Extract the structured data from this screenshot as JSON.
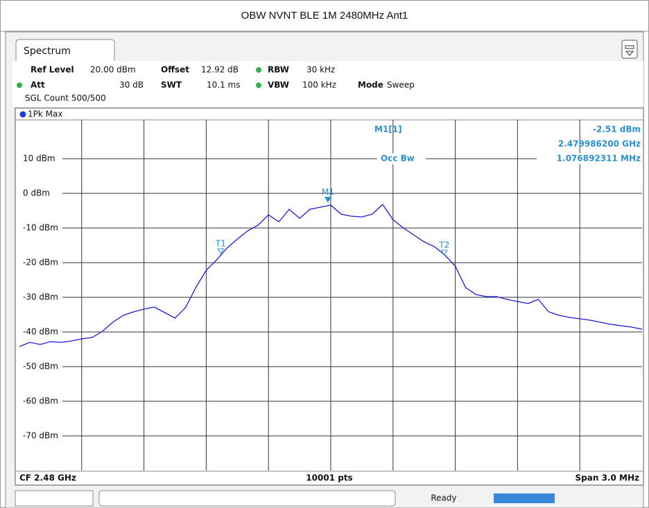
{
  "chart_data": {
    "type": "line",
    "title": "OBW NVNT BLE 1M 2480MHz Ant1",
    "trace_label": "1Pk Max",
    "xlim": [
      2.4785,
      2.4815
    ],
    "ylim": [
      -80,
      20
    ],
    "yticks": [
      {
        "value": 10,
        "label": "10 dBm"
      },
      {
        "value": 0,
        "label": "0 dBm"
      },
      {
        "value": -10,
        "label": "-10 dBm"
      },
      {
        "value": -20,
        "label": "-20 dBm"
      },
      {
        "value": -30,
        "label": "-30 dBm"
      },
      {
        "value": -40,
        "label": "-40 dBm"
      },
      {
        "value": -50,
        "label": "-50 dBm"
      },
      {
        "value": -60,
        "label": "-60 dBm"
      },
      {
        "value": -70,
        "label": "-70 dBm"
      }
    ],
    "grid": true,
    "x": [
      2.4785,
      2.47855,
      2.4786,
      2.47865,
      2.4787,
      2.47875,
      2.4788,
      2.47885,
      2.4789,
      2.47895,
      2.479,
      2.47905,
      2.4791,
      2.47915,
      2.4792,
      2.47925,
      2.4793,
      2.47935,
      2.4794,
      2.47945,
      2.4795,
      2.47955,
      2.4796,
      2.47965,
      2.4797,
      2.47975,
      2.4798,
      2.47985,
      2.4799,
      2.47995,
      2.48,
      2.48005,
      2.4801,
      2.48015,
      2.4802,
      2.48025,
      2.4803,
      2.48035,
      2.4804,
      2.48045,
      2.4805,
      2.48055,
      2.4806,
      2.48065,
      2.4807,
      2.48075,
      2.4808,
      2.48085,
      2.4809,
      2.48095,
      2.481,
      2.48105,
      2.4811,
      2.48115,
      2.4812,
      2.48125,
      2.4813,
      2.48135,
      2.4814,
      2.48145,
      2.4815
    ],
    "series": [
      {
        "name": "1Pk Max",
        "color": "#1a1adc",
        "values": [
          -44.2,
          -43,
          -43.6,
          -42.8,
          -43,
          -42.6,
          -42,
          -41.6,
          -39.8,
          -37.2,
          -35.2,
          -34.2,
          -33.4,
          -32.8,
          -34.4,
          -36,
          -33,
          -27.2,
          -22.2,
          -19.2,
          -15.8,
          -13.2,
          -10.8,
          -9.2,
          -6.2,
          -8.2,
          -4.6,
          -7.2,
          -4.6,
          -4,
          -3.4,
          -6,
          -6.6,
          -6.8,
          -6,
          -3.2,
          -7.6,
          -10,
          -12,
          -14,
          -15.4,
          -17.8,
          -21,
          -27.2,
          -29.2,
          -29.8,
          -29.8,
          -30.6,
          -31.2,
          -31.8,
          -30.6,
          -34.2,
          -35.2,
          -35.8,
          -36.2,
          -36.6,
          -37.2,
          -37.8,
          -38.2,
          -38.6,
          -39.2
        ]
      }
    ],
    "markers": [
      {
        "name": "M1",
        "x": 2.4799862,
        "y": -2.51
      },
      {
        "name": "T1",
        "x": 2.47947,
        "y": -17.4
      },
      {
        "name": "T2",
        "x": 2.480547,
        "y": -17.8
      }
    ],
    "readout": {
      "marker": "M1[1]",
      "level": "-2.51 dBm",
      "freq": "2.479986200 GHz",
      "obw_label": "Occ Bw",
      "obw": "1.076892311 MHz"
    },
    "footer": {
      "left": "CF 2.48 GHz",
      "center": "10001 pts",
      "right": "Span 3.0 MHz"
    }
  },
  "ui": {
    "tab": "Spectrum",
    "settings": {
      "ref_label": "Ref Level",
      "ref": "20.00 dBm",
      "offset_label": "Offset",
      "offset": "12.92 dB",
      "rbw_label": "RBW",
      "rbw": "30 kHz",
      "att_label": "Att",
      "att": "30 dB",
      "swt_label": "SWT",
      "swt": "10.1 ms",
      "vbw_label": "VBW",
      "vbw": "100 kHz",
      "mode_label": "Mode",
      "mode": "Sweep",
      "count": "SGL Count 500/500"
    },
    "status": "Ready"
  }
}
